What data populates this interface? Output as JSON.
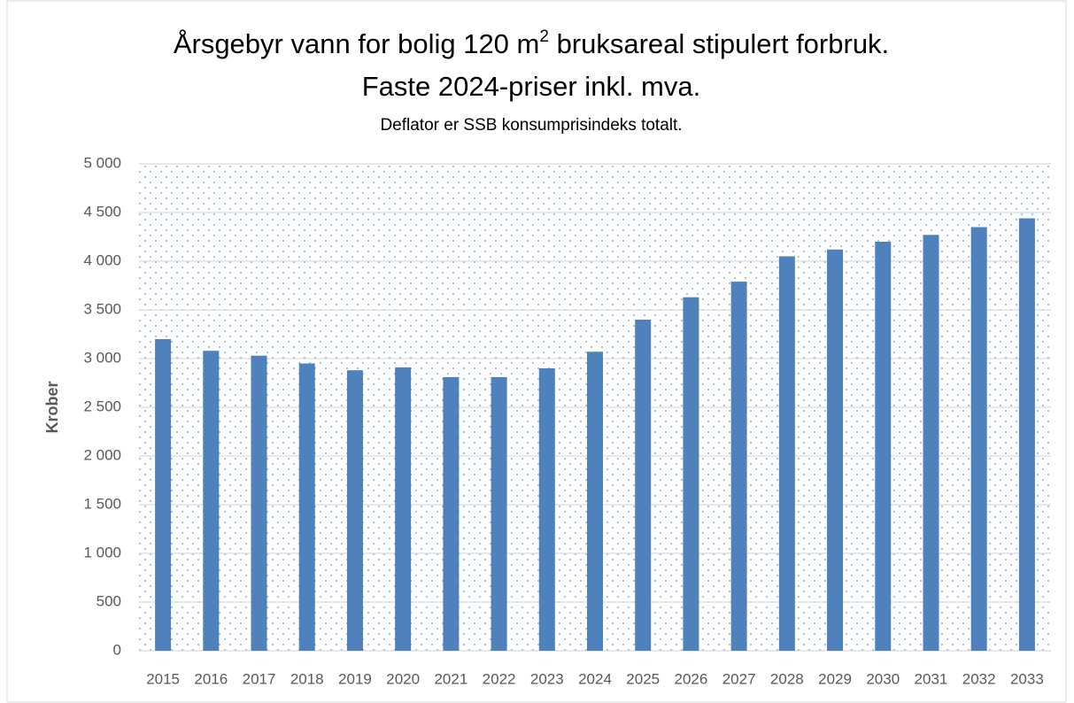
{
  "chart_data": {
    "type": "bar",
    "title": [
      "Årsgebyr vann for bolig 120 m",
      "2",
      " bruksareal stipulert forbruk.",
      "Faste 2024-priser inkl. mva."
    ],
    "subtitle": "Deflator er SSB konsumprisindeks totalt.",
    "y_label": "Krober",
    "categories": [
      "2015",
      "2016",
      "2017",
      "2018",
      "2019",
      "2020",
      "2021",
      "2022",
      "2023",
      "2024",
      "2025",
      "2026",
      "2027",
      "2028",
      "2029",
      "2030",
      "2031",
      "2032",
      "2033"
    ],
    "values": [
      3200,
      3080,
      3030,
      2950,
      2880,
      2910,
      2810,
      2810,
      2900,
      3070,
      3400,
      3630,
      3790,
      4050,
      4120,
      4200,
      4270,
      4350,
      4440
    ],
    "color": "#4f81bd",
    "ylim": [
      0,
      5000
    ],
    "yticks": [
      0,
      500,
      {
        "value": 1000,
        "label": "1 000"
      },
      {
        "value": 1500,
        "label": "1 500"
      },
      {
        "value": 2000,
        "label": "2 000"
      },
      {
        "value": 2500,
        "label": "2 500"
      },
      {
        "value": 3000,
        "label": "3 000"
      },
      {
        "value": 3500,
        "label": "3 500"
      },
      {
        "value": 4000,
        "label": "4 000"
      },
      {
        "value": 4500,
        "label": "4 500"
      },
      {
        "value": 5000,
        "label": "5 000"
      }
    ],
    "grid": true
  }
}
